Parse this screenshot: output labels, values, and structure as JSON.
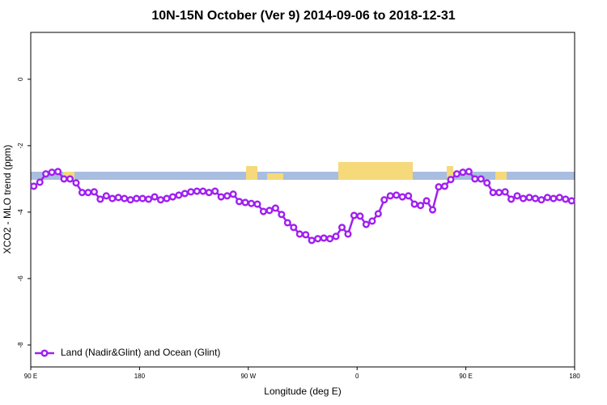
{
  "chart_data": {
    "type": "line",
    "title": "10N-15N October (Ver 9)   2014-09-06 to 2018-12-31",
    "x_label": "Longitude (deg E)",
    "y_label": "XCO2 - MLO trend (ppm)",
    "xlim": [
      90,
      540
    ],
    "ylim": [
      -8.66,
      1.41
    ],
    "xticks": [
      {
        "value": 90,
        "label": "90 E"
      },
      180,
      {
        "value": 270,
        "label": "90 W"
      },
      {
        "value": 360,
        "label": "0"
      },
      {
        "value": 450,
        "label": "90 E"
      },
      180
    ],
    "yticks": [
      -8,
      -6,
      -4,
      -2,
      0
    ],
    "legend": "bottom-left",
    "x": [
      92.5,
      97.5,
      102.5,
      107.5,
      112.5,
      117.5,
      122.5,
      127.5,
      132.5,
      137.5,
      142.5,
      147.5,
      152.5,
      157.5,
      162.5,
      167.5,
      172.5,
      177.5,
      182.5,
      187.5,
      192.5,
      197.5,
      202.5,
      207.5,
      212.5,
      217.5,
      222.5,
      227.5,
      232.5,
      237.5,
      242.5,
      247.5,
      252.5,
      257.5,
      262.5,
      267.5,
      272.5,
      277.5,
      282.5,
      287.5,
      292.5,
      297.5,
      302.5,
      307.5,
      312.5,
      317.5,
      322.5,
      327.5,
      332.5,
      337.5,
      342.5,
      347.5,
      352.5,
      357.5,
      362.5,
      367.5,
      372.5,
      377.5,
      382.5,
      387.5,
      392.5,
      397.5,
      402.5,
      407.5,
      412.5,
      417.5,
      422.5,
      427.5,
      432.5,
      437.5,
      442.5,
      447.5,
      452.5,
      457.5,
      462.5,
      467.5,
      472.5,
      477.5,
      482.5,
      487.5,
      492.5,
      497.5,
      502.5,
      507.5,
      512.5,
      517.5,
      522.5,
      527.5,
      532.5,
      537.5
    ],
    "series": [
      {
        "name": "Land (Nadir&Glint) and Ocean (Glint)",
        "color": "#a020f0",
        "values": [
          -3.22,
          -3.1,
          -2.85,
          -2.8,
          -2.78,
          -3.0,
          -3.0,
          -3.12,
          -3.41,
          -3.41,
          -3.39,
          -3.61,
          -3.51,
          -3.59,
          -3.56,
          -3.59,
          -3.63,
          -3.59,
          -3.59,
          -3.61,
          -3.54,
          -3.63,
          -3.59,
          -3.54,
          -3.49,
          -3.44,
          -3.39,
          -3.37,
          -3.37,
          -3.41,
          -3.37,
          -3.54,
          -3.51,
          -3.46,
          -3.68,
          -3.71,
          -3.74,
          -3.76,
          -3.98,
          -3.95,
          -3.88,
          -4.07,
          -4.32,
          -4.46,
          -4.66,
          -4.68,
          -4.85,
          -4.8,
          -4.78,
          -4.8,
          -4.73,
          -4.46,
          -4.66,
          -4.1,
          -4.12,
          -4.37,
          -4.27,
          -4.05,
          -3.63,
          -3.51,
          -3.49,
          -3.54,
          -3.51,
          -3.76,
          -3.8,
          -3.66,
          -3.93,
          -3.24,
          -3.22,
          -3.02,
          -2.85,
          -2.8,
          -2.78,
          -3.0,
          -3.0,
          -3.12,
          -3.41,
          -3.41,
          -3.39,
          -3.61,
          -3.51,
          -3.59,
          -3.56,
          -3.59,
          -3.63,
          -3.56,
          -3.59,
          -3.56,
          -3.61,
          -3.66
        ]
      }
    ]
  }
}
